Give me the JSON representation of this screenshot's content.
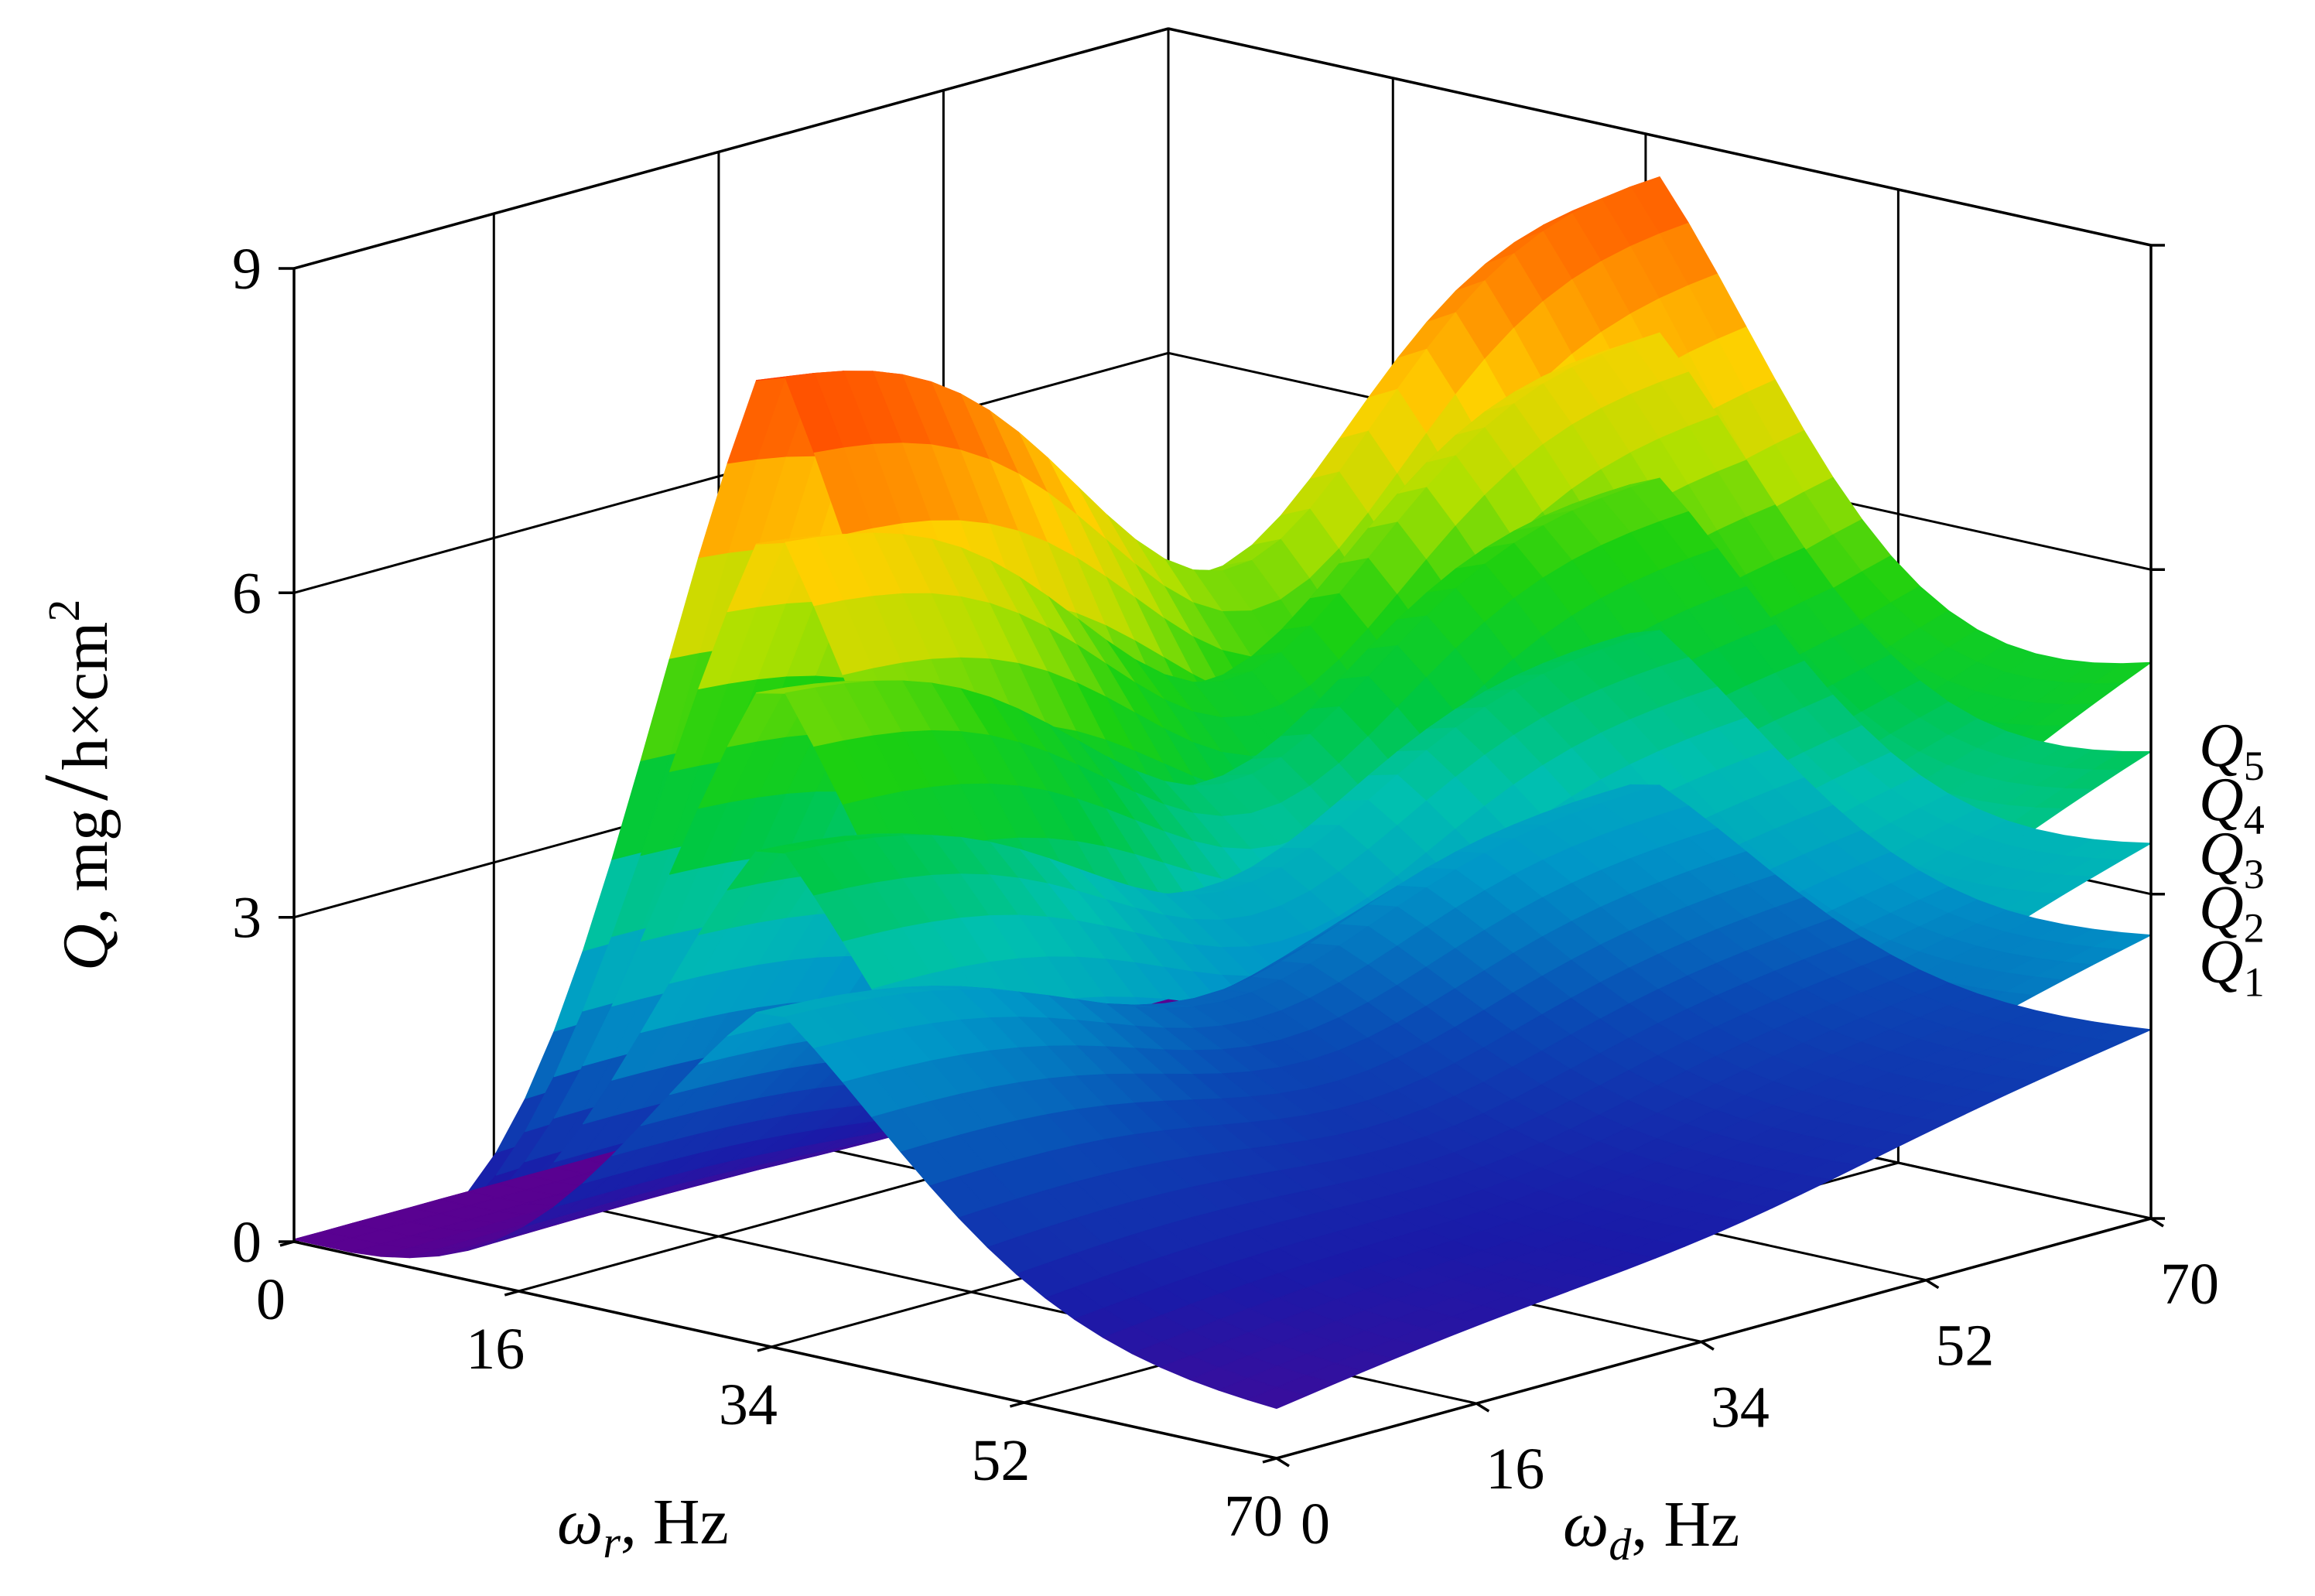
{
  "chart_data": {
    "type": "surface",
    "title": "",
    "zlabel": {
      "symbol": "Q",
      "unit": ", mg",
      "unit_denominator": "h×cm",
      "exponent": "2"
    },
    "xlabel": {
      "symbol": "ω",
      "subscript": "r",
      "unit": ", Hz"
    },
    "ylabel": {
      "symbol": "ω",
      "subscript": "d",
      "unit": ", Hz"
    },
    "x_ticks": [
      "0",
      "16",
      "34",
      "52",
      "70"
    ],
    "x_tick_values": [
      0,
      16,
      34,
      52,
      70
    ],
    "y_ticks": [
      "0",
      "16",
      "34",
      "52",
      "70"
    ],
    "y_tick_values": [
      0,
      16,
      34,
      52,
      70
    ],
    "z_ticks": [
      "0",
      "3",
      "6",
      "9"
    ],
    "z_tick_values": [
      0,
      3,
      6,
      9
    ],
    "xlim": [
      0,
      70
    ],
    "ylim": [
      0,
      70
    ],
    "zlim": [
      0,
      9
    ],
    "grid": true,
    "colormap": [
      "#5a0090",
      "#1a1aa8",
      "#0a48b4",
      "#0098c8",
      "#00c0b0",
      "#00c840",
      "#1cd010",
      "#b0e000",
      "#ffd000",
      "#ff8000",
      "#ff3800"
    ],
    "series": [
      {
        "name": "Q",
        "subscript": "1",
        "peak": 3.2,
        "edge_mid": 1.2,
        "end_value": 1.4,
        "end_value_label": 2.4
      },
      {
        "name": "Q",
        "subscript": "2",
        "peak": 4.6,
        "edge_mid": 2.2,
        "end_value": 2.0,
        "end_value_label": 2.9
      },
      {
        "name": "Q",
        "subscript": "3",
        "peak": 6.0,
        "edge_mid": 3.1,
        "end_value": 2.6,
        "end_value_label": 3.4
      },
      {
        "name": "Q",
        "subscript": "4",
        "peak": 7.3,
        "edge_mid": 4.0,
        "end_value": 3.2,
        "end_value_label": 3.9
      },
      {
        "name": "Q",
        "subscript": "5",
        "peak": 8.8,
        "edge_mid": 4.8,
        "end_value": 3.8,
        "end_value_label": 4.4
      }
    ]
  }
}
